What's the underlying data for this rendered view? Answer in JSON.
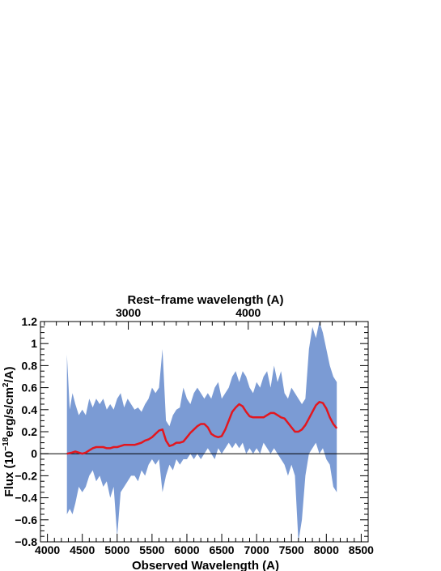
{
  "chart_data": {
    "type": "area",
    "xlabel": "Observed Wavelength (A)",
    "ylabel": "Flux (10^-18 erg/s/cm^2/A)",
    "ylabel_parts": {
      "pre": "Flux (10",
      "exp1": "−18",
      "mid": "erg/s/cm",
      "exp2": "2",
      "post": "/A)"
    },
    "top_axis_label": "Rest−frame wavelength (A)",
    "top_tick_labels": [
      "3000",
      "4000"
    ],
    "top_tick_rest_values": [
      3000,
      4000
    ],
    "redshift": 0.72,
    "xlim": [
      3900,
      8600
    ],
    "ylim": [
      -0.8,
      1.2
    ],
    "x_tick_labels": [
      "4000",
      "4500",
      "5000",
      "5500",
      "6000",
      "6500",
      "7000",
      "7500",
      "8000",
      "8500"
    ],
    "x_tick_values": [
      4000,
      4500,
      5000,
      5500,
      6000,
      6500,
      7000,
      7500,
      8000,
      8500
    ],
    "y_tick_labels": [
      "−0.8",
      "−0.6",
      "−0.4",
      "−0.2",
      "0",
      "0.2",
      "0.4",
      "0.6",
      "0.8",
      "1",
      "1.2"
    ],
    "y_tick_values": [
      -0.8,
      -0.6,
      -0.4,
      -0.2,
      0,
      0.2,
      0.4,
      0.6,
      0.8,
      1,
      1.2
    ],
    "zero_line": 0,
    "series": [
      {
        "role": "noisy-spectrum-band",
        "color": "#7b9bd4",
        "x": [
          4280,
          4320,
          4360,
          4400,
          4450,
          4500,
          4550,
          4600,
          4650,
          4700,
          4750,
          4800,
          4850,
          4900,
          4950,
          5000,
          5050,
          5100,
          5150,
          5200,
          5250,
          5300,
          5350,
          5400,
          5450,
          5500,
          5550,
          5600,
          5650,
          5700,
          5750,
          5800,
          5850,
          5900,
          5950,
          6000,
          6050,
          6100,
          6150,
          6200,
          6250,
          6300,
          6350,
          6400,
          6450,
          6500,
          6550,
          6600,
          6650,
          6700,
          6750,
          6800,
          6850,
          6900,
          6950,
          7000,
          7050,
          7100,
          7150,
          7200,
          7250,
          7300,
          7350,
          7400,
          7450,
          7500,
          7550,
          7600,
          7650,
          7700,
          7750,
          7800,
          7850,
          7900,
          7950,
          8000,
          8050,
          8100,
          8150
        ],
        "upper": [
          0.9,
          0.4,
          0.55,
          0.45,
          0.35,
          0.4,
          0.35,
          0.5,
          0.42,
          0.5,
          0.45,
          0.5,
          0.4,
          0.45,
          0.4,
          0.5,
          0.55,
          0.42,
          0.5,
          0.45,
          0.4,
          0.42,
          0.38,
          0.45,
          0.5,
          0.6,
          0.55,
          0.6,
          0.95,
          0.3,
          0.25,
          0.35,
          0.4,
          0.42,
          0.6,
          0.5,
          0.45,
          0.55,
          0.6,
          0.55,
          0.5,
          0.55,
          0.5,
          0.6,
          0.65,
          0.5,
          0.55,
          0.6,
          0.7,
          0.75,
          0.65,
          0.75,
          0.7,
          0.6,
          0.55,
          0.65,
          0.6,
          0.7,
          0.75,
          0.6,
          0.8,
          0.65,
          0.75,
          0.55,
          0.5,
          0.6,
          0.55,
          0.5,
          0.45,
          0.5,
          0.95,
          1.15,
          1.05,
          1.2,
          1.1,
          0.95,
          0.8,
          0.7,
          0.65
        ],
        "lower": [
          -0.55,
          -0.5,
          -0.55,
          -0.45,
          -0.3,
          -0.35,
          -0.3,
          -0.2,
          -0.15,
          -0.25,
          -0.2,
          -0.3,
          -0.25,
          -0.4,
          -0.3,
          -0.75,
          -0.35,
          -0.3,
          -0.25,
          -0.2,
          -0.2,
          -0.25,
          -0.15,
          -0.2,
          -0.1,
          -0.05,
          -0.1,
          -0.05,
          -0.35,
          -0.2,
          -0.1,
          -0.15,
          -0.05,
          -0.1,
          -0.05,
          -0.05,
          0.0,
          -0.05,
          0.0,
          -0.05,
          0.0,
          0.05,
          0.0,
          -0.05,
          0.05,
          0.0,
          0.05,
          0.1,
          0.05,
          0.1,
          0.05,
          0.1,
          0.0,
          0.05,
          0.0,
          0.05,
          0.0,
          0.1,
          0.05,
          0.0,
          0.05,
          0.0,
          -0.05,
          -0.1,
          -0.2,
          -0.1,
          -0.2,
          -0.8,
          -0.6,
          -0.2,
          0.0,
          0.05,
          0.1,
          0.0,
          0.05,
          -0.05,
          -0.1,
          -0.3,
          -0.35
        ]
      },
      {
        "role": "smoothed-spectrum",
        "color": "#e3171f",
        "x": [
          4280,
          4350,
          4400,
          4450,
          4500,
          4550,
          4600,
          4650,
          4700,
          4750,
          4800,
          4850,
          4900,
          4950,
          5000,
          5050,
          5100,
          5150,
          5200,
          5250,
          5300,
          5350,
          5400,
          5450,
          5500,
          5550,
          5600,
          5650,
          5700,
          5750,
          5800,
          5850,
          5900,
          5950,
          6000,
          6050,
          6100,
          6150,
          6200,
          6250,
          6300,
          6350,
          6400,
          6450,
          6500,
          6550,
          6600,
          6650,
          6700,
          6750,
          6800,
          6850,
          6900,
          6950,
          7000,
          7050,
          7100,
          7150,
          7200,
          7250,
          7300,
          7350,
          7400,
          7450,
          7500,
          7550,
          7600,
          7650,
          7700,
          7750,
          7800,
          7850,
          7900,
          7950,
          8000,
          8050,
          8100,
          8150
        ],
        "y": [
          0.0,
          0.01,
          0.02,
          0.01,
          0.0,
          0.01,
          0.03,
          0.05,
          0.06,
          0.06,
          0.06,
          0.05,
          0.05,
          0.06,
          0.06,
          0.07,
          0.08,
          0.08,
          0.08,
          0.08,
          0.09,
          0.1,
          0.12,
          0.13,
          0.15,
          0.18,
          0.21,
          0.22,
          0.12,
          0.07,
          0.08,
          0.1,
          0.1,
          0.11,
          0.15,
          0.19,
          0.22,
          0.25,
          0.27,
          0.27,
          0.24,
          0.18,
          0.16,
          0.15,
          0.16,
          0.22,
          0.3,
          0.38,
          0.42,
          0.45,
          0.43,
          0.38,
          0.34,
          0.33,
          0.33,
          0.33,
          0.33,
          0.35,
          0.37,
          0.37,
          0.35,
          0.33,
          0.32,
          0.28,
          0.24,
          0.2,
          0.2,
          0.22,
          0.26,
          0.32,
          0.38,
          0.44,
          0.47,
          0.46,
          0.41,
          0.33,
          0.27,
          0.23
        ]
      }
    ]
  }
}
